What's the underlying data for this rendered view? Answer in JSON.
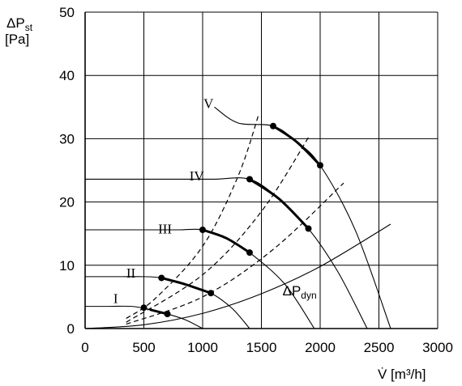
{
  "chart_data": {
    "type": "line",
    "title": "",
    "xlabel": "V̇ [m³/h]",
    "ylabel_lines": [
      "ΔPst",
      "[Pa]"
    ],
    "ylabel_main": "ΔP",
    "ylabel_sub": "st",
    "ylabel_unit": "[Pa]",
    "xlim": [
      0,
      3000
    ],
    "ylim": [
      0,
      50
    ],
    "xticks": [
      0,
      500,
      1000,
      1500,
      2000,
      2500,
      3000
    ],
    "yticks": [
      0,
      10,
      20,
      30,
      40,
      50
    ],
    "grid": true,
    "fan_curves": [
      {
        "label": "I",
        "points": [
          [
            0,
            3.5
          ],
          [
            200,
            3.5
          ],
          [
            400,
            3.5
          ],
          [
            550,
            3.0
          ],
          [
            700,
            2.3
          ],
          [
            850,
            1.4
          ],
          [
            1000,
            0
          ]
        ],
        "operating_range": [
          [
            500,
            3.3
          ],
          [
            700,
            2.3
          ]
        ],
        "label_anchor": [
          260,
          4.8
        ]
      },
      {
        "label": "II",
        "points": [
          [
            0,
            8.2
          ],
          [
            300,
            8.2
          ],
          [
            500,
            8.2
          ],
          [
            650,
            8.0
          ],
          [
            850,
            7.0
          ],
          [
            1070,
            5.6
          ],
          [
            1250,
            3.2
          ],
          [
            1400,
            0
          ]
        ],
        "operating_range": [
          [
            650,
            8.0
          ],
          [
            1070,
            5.6
          ]
        ],
        "label_anchor": [
          390,
          8.8
        ]
      },
      {
        "label": "III",
        "points": [
          [
            0,
            15.6
          ],
          [
            500,
            15.6
          ],
          [
            800,
            15.6
          ],
          [
            1000,
            15.6
          ],
          [
            1200,
            14.3
          ],
          [
            1400,
            12.0
          ],
          [
            1700,
            7.0
          ],
          [
            1950,
            0
          ]
        ],
        "operating_range": [
          [
            1000,
            15.6
          ],
          [
            1400,
            12.0
          ]
        ],
        "label_anchor": [
          680,
          15.8
        ]
      },
      {
        "label": "IV",
        "points": [
          [
            0,
            23.6
          ],
          [
            800,
            23.6
          ],
          [
            1100,
            23.6
          ],
          [
            1400,
            23.6
          ],
          [
            1650,
            20.5
          ],
          [
            1900,
            15.8
          ],
          [
            2150,
            9.0
          ],
          [
            2400,
            0
          ]
        ],
        "operating_range": [
          [
            1400,
            23.6
          ],
          [
            1900,
            15.8
          ]
        ],
        "label_anchor": [
          950,
          24.2
        ]
      },
      {
        "label": "V",
        "points": [
          [
            1100,
            35.0
          ],
          [
            1300,
            32.5
          ],
          [
            1600,
            32.0
          ],
          [
            1800,
            29.5
          ],
          [
            2000,
            25.8
          ],
          [
            2300,
            15.5
          ],
          [
            2600,
            0
          ]
        ],
        "operating_range": [
          [
            1600,
            32.0
          ],
          [
            2000,
            25.8
          ]
        ],
        "label_anchor": [
          1050,
          35.6
        ]
      }
    ],
    "system_curves_dashed": [
      {
        "points": [
          [
            350,
            1.6
          ],
          [
            600,
            4.8
          ],
          [
            1000,
            13.0
          ],
          [
            1300,
            24.0
          ],
          [
            1480,
            34.0
          ]
        ]
      },
      {
        "points": [
          [
            350,
            1.0
          ],
          [
            1000,
            8.5
          ],
          [
            1500,
            18.5
          ],
          [
            1910,
            30.5
          ]
        ]
      },
      {
        "points": [
          [
            350,
            0.7
          ],
          [
            1000,
            5.0
          ],
          [
            1600,
            12.5
          ],
          [
            2200,
            23.0
          ]
        ]
      }
    ],
    "dynamic_pressure_curve": {
      "label_main": "ΔP",
      "label_sub": "dyn",
      "label_anchor": [
        1680,
        6.0
      ],
      "points": [
        [
          0,
          0
        ],
        [
          500,
          0.6
        ],
        [
          1000,
          2.4
        ],
        [
          1500,
          5.5
        ],
        [
          2000,
          9.8
        ],
        [
          2600,
          16.5
        ]
      ]
    }
  }
}
